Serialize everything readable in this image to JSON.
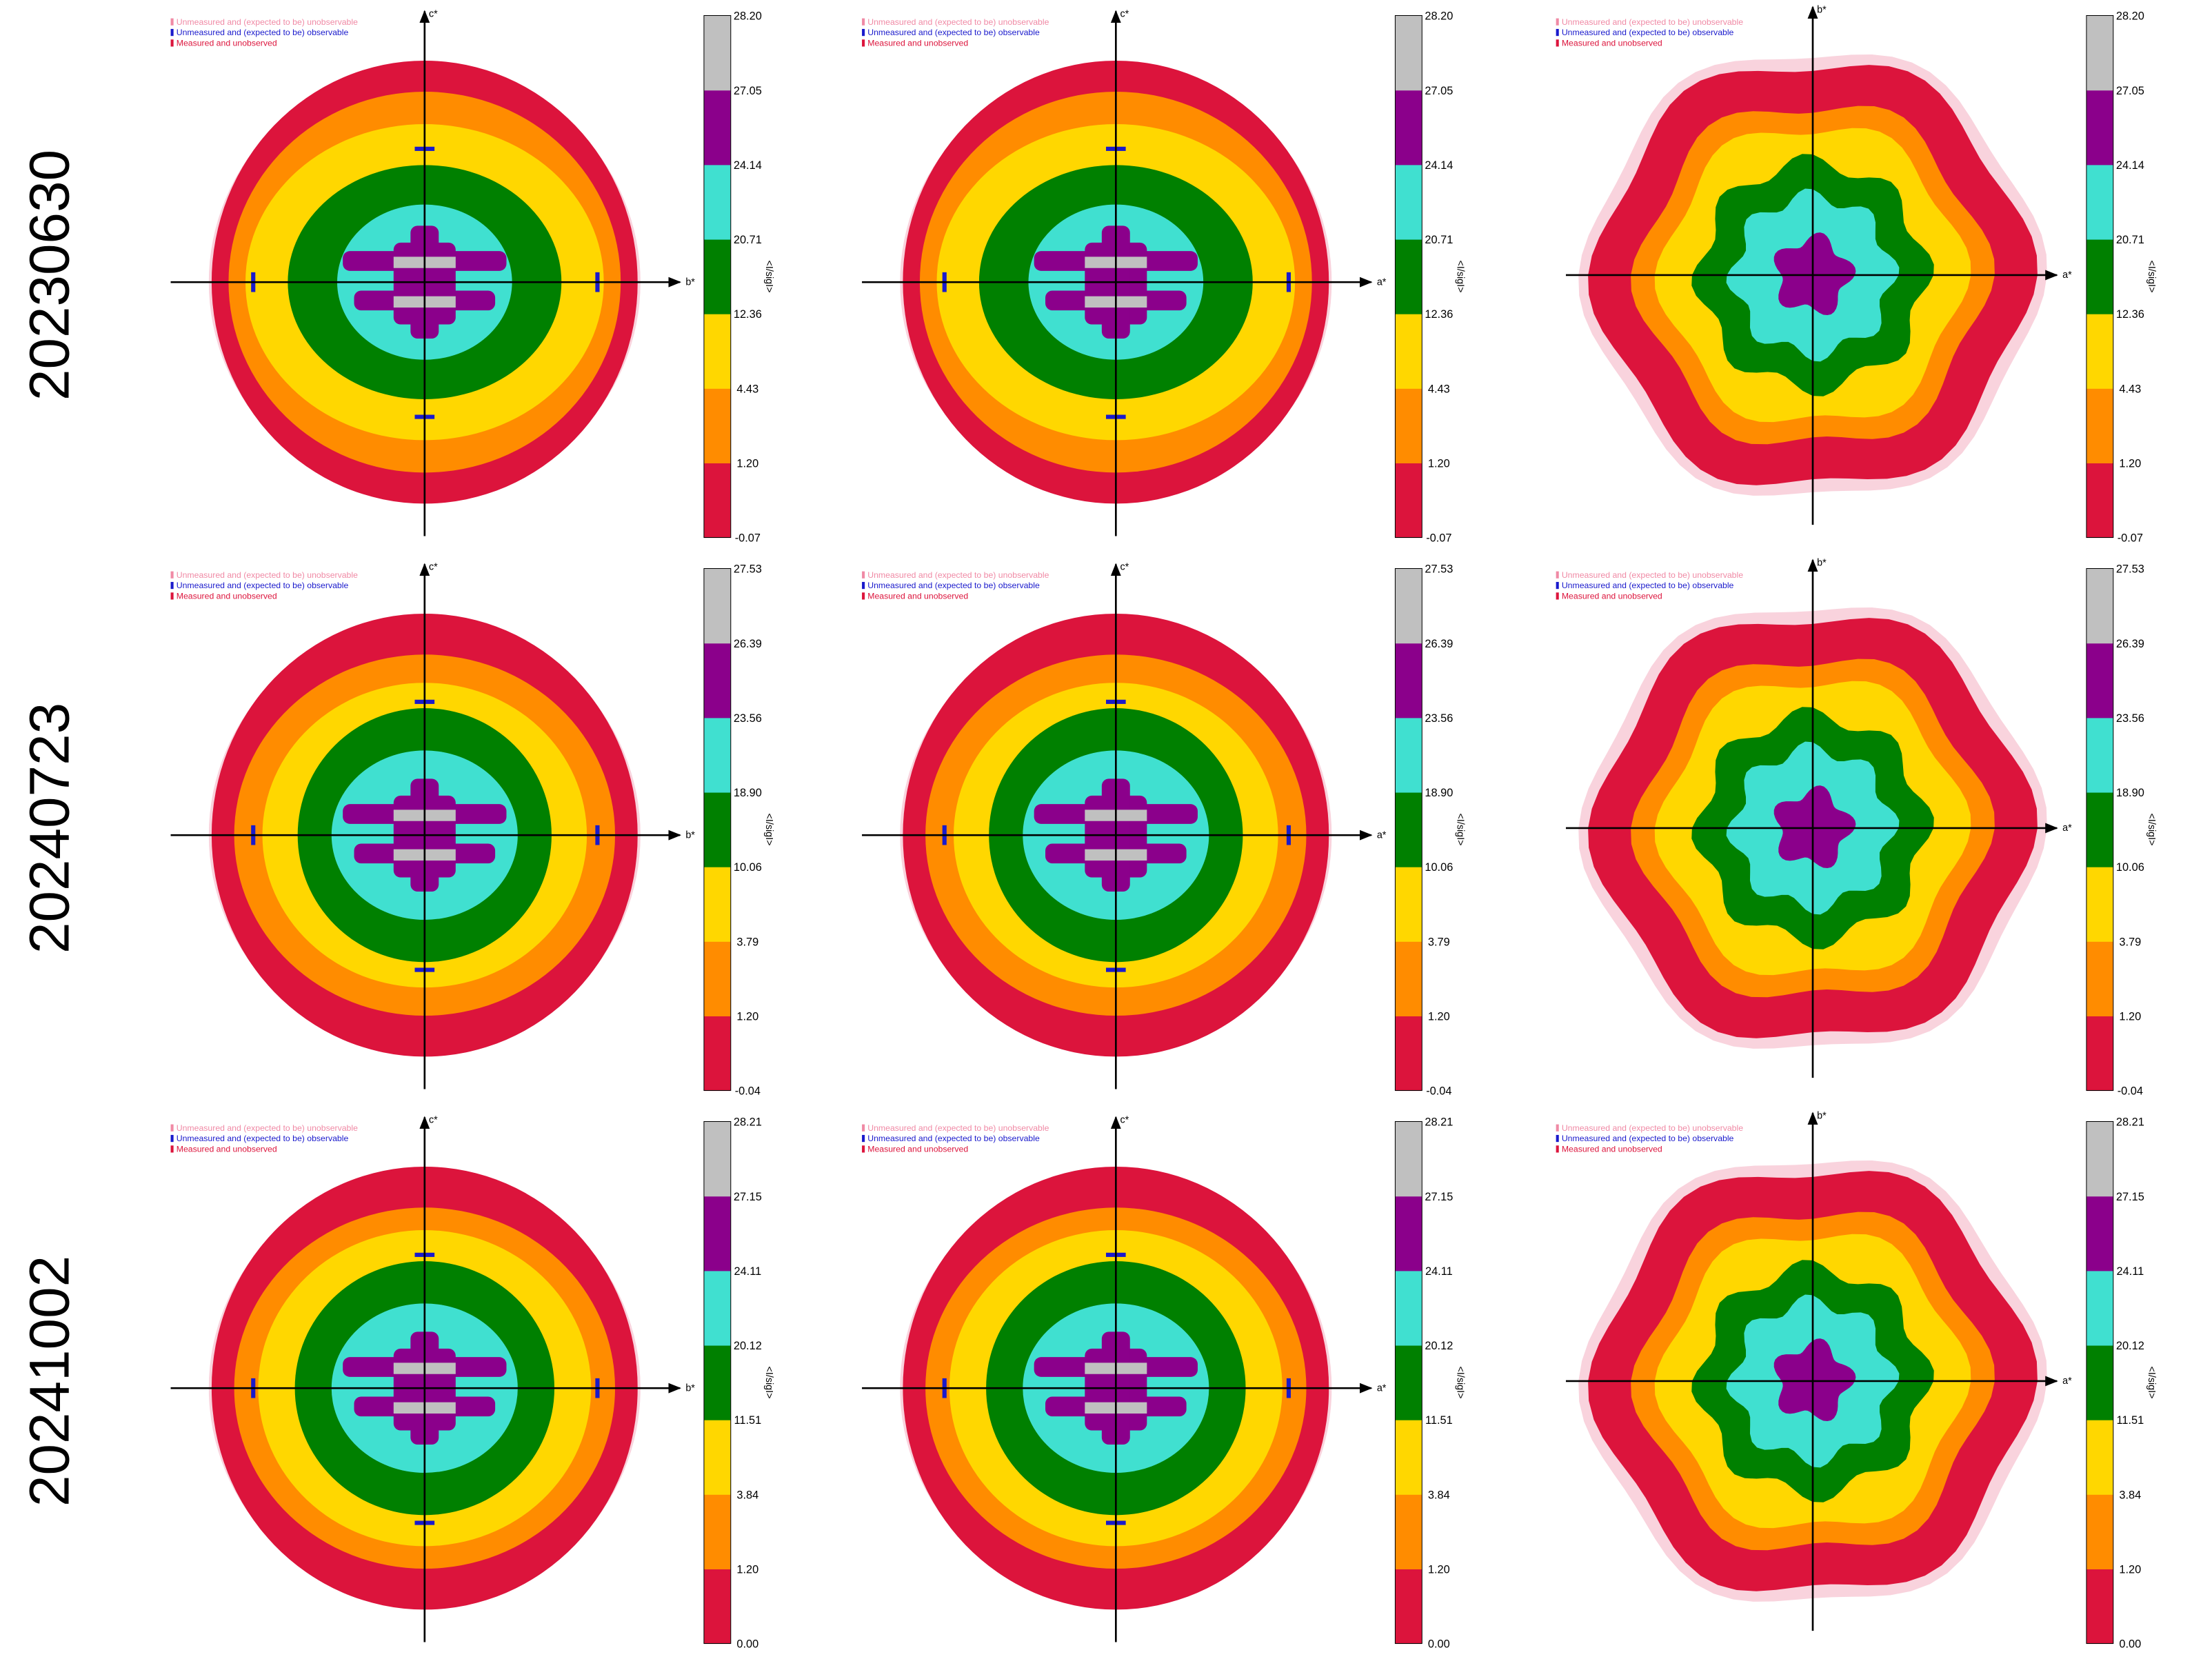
{
  "legend": [
    "Unmeasured and (expected to be) unobservable",
    "Unmeasured and (expected to be) observable",
    "Measured and unobserved"
  ],
  "columns": [
    {
      "vertical_axis": "c*",
      "horizontal_axis": "b*"
    },
    {
      "vertical_axis": "c*",
      "horizontal_axis": "a*"
    },
    {
      "vertical_axis": "b*",
      "horizontal_axis": "a*"
    }
  ],
  "colorbar_label": "<I/sigI>",
  "colorbar_colors": [
    "#dc143c",
    "#ff8c00",
    "#ffd700",
    "#008000",
    "#40e0d0",
    "#8b008b",
    "#c0c0c0"
  ],
  "rows": [
    {
      "label": "20230630",
      "colorbar_ticks": [
        "28.20",
        "27.05",
        "24.14",
        "20.71",
        "12.36",
        "4.43",
        "1.20",
        "-0.07"
      ]
    },
    {
      "label": "20240723",
      "colorbar_ticks": [
        "27.53",
        "26.39",
        "23.56",
        "18.90",
        "10.06",
        "3.79",
        "1.20",
        "-0.04"
      ]
    },
    {
      "label": "20241002",
      "colorbar_ticks": [
        "28.21",
        "27.15",
        "24.11",
        "20.12",
        "11.51",
        "3.84",
        "1.20",
        "0.00"
      ]
    }
  ]
}
